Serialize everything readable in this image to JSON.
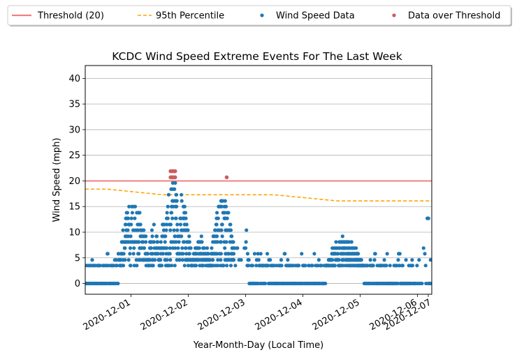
{
  "chart_data": {
    "type": "scatter",
    "title": "KCDC Wind Speed Extreme Events For The Last Week",
    "xlabel": "Year-Month-Day (Local Time)",
    "ylabel": "Wind Speed (mph)",
    "xlim": [
      0.0,
      6.05
    ],
    "ylim": [
      -2.1,
      42.5
    ],
    "yticks": [
      0,
      5,
      10,
      15,
      20,
      25,
      30,
      35,
      40
    ],
    "xticks": [
      {
        "label": "2020-12-01",
        "value": 0.8
      },
      {
        "label": "2020-12-02",
        "value": 1.8
      },
      {
        "label": "2020-12-03",
        "value": 2.8
      },
      {
        "label": "2020-12-04",
        "value": 3.8
      },
      {
        "label": "2020-12-05",
        "value": 4.8
      },
      {
        "label": "2020-12-06",
        "value": 5.8
      },
      {
        "label": "2020-12-07",
        "value": 6.8
      }
    ],
    "grid": "horizontal",
    "legend_position": "top, outside",
    "legend": [
      {
        "label": "Threshold (20)",
        "kind": "line",
        "color": "#f08080"
      },
      {
        "label": "95th Percentile",
        "kind": "dashed",
        "color": "#ffa500"
      },
      {
        "label": "Wind Speed Data",
        "kind": "marker",
        "color": "#1f77b4"
      },
      {
        "label": "Data over Threshold",
        "kind": "marker",
        "color": "#cd5c5c"
      }
    ],
    "series": [
      {
        "name": "Threshold (20)",
        "kind": "hline",
        "value": 20,
        "color": "#f08080"
      },
      {
        "name": "95th Percentile",
        "kind": "dashed",
        "color": "#ffa500",
        "x": [
          0.0,
          0.38,
          1.35,
          3.3,
          4.4,
          6.05
        ],
        "y": [
          18.4,
          18.4,
          17.3,
          17.3,
          16.1,
          16.1
        ]
      },
      {
        "name": "Wind Speed Data",
        "kind": "scatter",
        "color": "#1f77b4",
        "segments": [
          {
            "from": 0.0,
            "to": 0.58,
            "pattern": "low"
          },
          {
            "from": 0.58,
            "to": 1.1,
            "pattern": "peak",
            "max": 16
          },
          {
            "from": 1.1,
            "to": 1.3,
            "pattern": "mid",
            "max": 12
          },
          {
            "from": 1.3,
            "to": 1.85,
            "pattern": "peak",
            "max": 20
          },
          {
            "from": 1.85,
            "to": 2.2,
            "pattern": "mid",
            "max": 9
          },
          {
            "from": 2.2,
            "to": 2.6,
            "pattern": "peak",
            "max": 17
          },
          {
            "from": 2.6,
            "to": 2.85,
            "pattern": "sparse"
          },
          {
            "from": 2.85,
            "to": 4.2,
            "pattern": "low"
          },
          {
            "from": 4.2,
            "to": 4.85,
            "pattern": "midlow",
            "max": 9
          },
          {
            "from": 4.85,
            "to": 5.75,
            "pattern": "low"
          },
          {
            "from": 5.75,
            "to": 6.05,
            "pattern": "tail"
          }
        ]
      },
      {
        "name": "Data over Threshold",
        "kind": "scatter",
        "color": "#cd5c5c",
        "x": [
          1.49,
          1.5,
          1.52,
          1.54,
          1.55,
          1.57,
          1.49,
          1.52,
          1.55,
          1.57,
          1.5,
          1.53,
          2.47
        ],
        "y": [
          21.9,
          21.9,
          21.9,
          21.9,
          21.9,
          21.9,
          20.7,
          20.7,
          20.7,
          20.7,
          20.7,
          20.7,
          20.7
        ]
      }
    ]
  }
}
